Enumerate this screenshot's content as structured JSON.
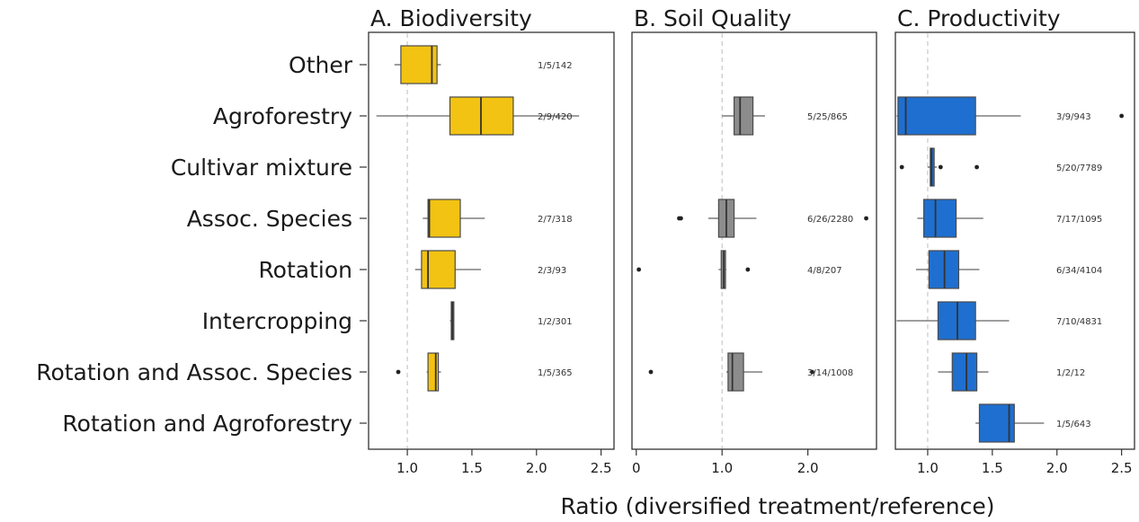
{
  "chart_data": {
    "type": "boxplot",
    "orientation": "horizontal",
    "xlabel": "Ratio (diversified treatment/reference)",
    "categories": [
      "Other",
      "Agroforestry",
      "Cultivar mixture",
      "Assoc. Species",
      "Rotation",
      "Intercropping",
      "Rotation and Assoc. Species",
      "Rotation and Agroforestry"
    ],
    "reference_line": 1.0,
    "panels": [
      {
        "title": "A. Biodiversity",
        "color": "#F2C312",
        "xlim": [
          0.7,
          2.6
        ],
        "ticks": [
          1.0,
          1.5,
          2.0,
          2.5
        ],
        "tick_labels": [
          "1.0",
          "1.5",
          "2.0",
          "2.5"
        ],
        "boxes": [
          {
            "category": "Other",
            "whisker_low": 0.9,
            "q1": 0.95,
            "median": 1.19,
            "q3": 1.23,
            "whisker_high": 1.26,
            "outliers": [],
            "label": "1/5/142"
          },
          {
            "category": "Agroforestry",
            "whisker_low": 0.76,
            "q1": 1.33,
            "median": 1.57,
            "q3": 1.82,
            "whisker_high": 2.33,
            "outliers": [],
            "label": "2/9/420"
          },
          {
            "category": "Assoc. Species",
            "whisker_low": 1.12,
            "q1": 1.16,
            "median": 1.17,
            "q3": 1.41,
            "whisker_high": 1.6,
            "outliers": [],
            "label": "2/7/318"
          },
          {
            "category": "Rotation",
            "whisker_low": 1.06,
            "q1": 1.11,
            "median": 1.16,
            "q3": 1.37,
            "whisker_high": 1.57,
            "outliers": [],
            "label": "2/3/93"
          },
          {
            "category": "Intercropping",
            "whisker_low": 1.33,
            "q1": 1.34,
            "median": 1.35,
            "q3": 1.36,
            "whisker_high": 1.36,
            "outliers": [],
            "label": "1/2/301"
          },
          {
            "category": "Rotation and Assoc. Species",
            "whisker_low": 1.15,
            "q1": 1.16,
            "median": 1.22,
            "q3": 1.24,
            "whisker_high": 1.26,
            "outliers": [
              0.93
            ],
            "label": "1/5/365"
          }
        ]
      },
      {
        "title": "B. Soil Quality",
        "color": "#8C8C8C",
        "xlim": [
          -0.05,
          2.8
        ],
        "ticks": [
          0,
          1.0,
          2.0
        ],
        "tick_labels": [
          "0",
          "1.0",
          "2.0"
        ],
        "boxes": [
          {
            "category": "Agroforestry",
            "whisker_low": 1.0,
            "q1": 1.14,
            "median": 1.21,
            "q3": 1.36,
            "whisker_high": 1.5,
            "outliers": [],
            "label": "5/25/865"
          },
          {
            "category": "Assoc. Species",
            "whisker_low": 0.84,
            "q1": 0.96,
            "median": 1.05,
            "q3": 1.14,
            "whisker_high": 1.4,
            "outliers": [
              0.5,
              0.52,
              2.68
            ],
            "label": "6/26/2280"
          },
          {
            "category": "Rotation",
            "whisker_low": 0.96,
            "q1": 0.99,
            "median": 1.02,
            "q3": 1.04,
            "whisker_high": 1.05,
            "outliers": [
              0.03,
              1.3
            ],
            "label": "4/8/207"
          },
          {
            "category": "Rotation and Assoc. Species",
            "whisker_low": 1.05,
            "q1": 1.07,
            "median": 1.12,
            "q3": 1.25,
            "whisker_high": 1.47,
            "outliers": [
              0.17,
              2.05
            ],
            "label": "3/14/1008"
          }
        ]
      },
      {
        "title": "C. Productivity",
        "color": "#1E6FD0",
        "xlim": [
          0.75,
          2.6
        ],
        "ticks": [
          1.0,
          1.5,
          2.0,
          2.5
        ],
        "tick_labels": [
          "1.0",
          "1.5",
          "2.0",
          "2.5"
        ],
        "boxes": [
          {
            "category": "Agroforestry",
            "whisker_low": 0.76,
            "q1": 0.77,
            "median": 0.83,
            "q3": 1.37,
            "whisker_high": 1.72,
            "outliers": [
              2.5
            ],
            "label": "3/9/943"
          },
          {
            "category": "Cultivar mixture",
            "whisker_low": 1.0,
            "q1": 1.02,
            "median": 1.03,
            "q3": 1.05,
            "whisker_high": 1.07,
            "outliers": [
              0.8,
              1.1,
              1.38
            ],
            "label": "5/20/7789"
          },
          {
            "category": "Assoc. Species",
            "whisker_low": 0.92,
            "q1": 0.97,
            "median": 1.06,
            "q3": 1.22,
            "whisker_high": 1.43,
            "outliers": [],
            "label": "7/17/1095"
          },
          {
            "category": "Rotation",
            "whisker_low": 0.91,
            "q1": 1.01,
            "median": 1.13,
            "q3": 1.24,
            "whisker_high": 1.4,
            "outliers": [],
            "label": "6/34/4104"
          },
          {
            "category": "Intercropping",
            "whisker_low": 0.76,
            "q1": 1.08,
            "median": 1.23,
            "q3": 1.37,
            "whisker_high": 1.63,
            "outliers": [],
            "label": "7/10/4831"
          },
          {
            "category": "Rotation and Assoc. Species",
            "whisker_low": 1.08,
            "q1": 1.19,
            "median": 1.3,
            "q3": 1.38,
            "whisker_high": 1.47,
            "outliers": [],
            "label": "1/2/12"
          },
          {
            "category": "Rotation and Agroforestry",
            "whisker_low": 1.37,
            "q1": 1.4,
            "median": 1.63,
            "q3": 1.67,
            "whisker_high": 1.9,
            "outliers": [],
            "label": "1/5/643"
          }
        ]
      }
    ]
  }
}
